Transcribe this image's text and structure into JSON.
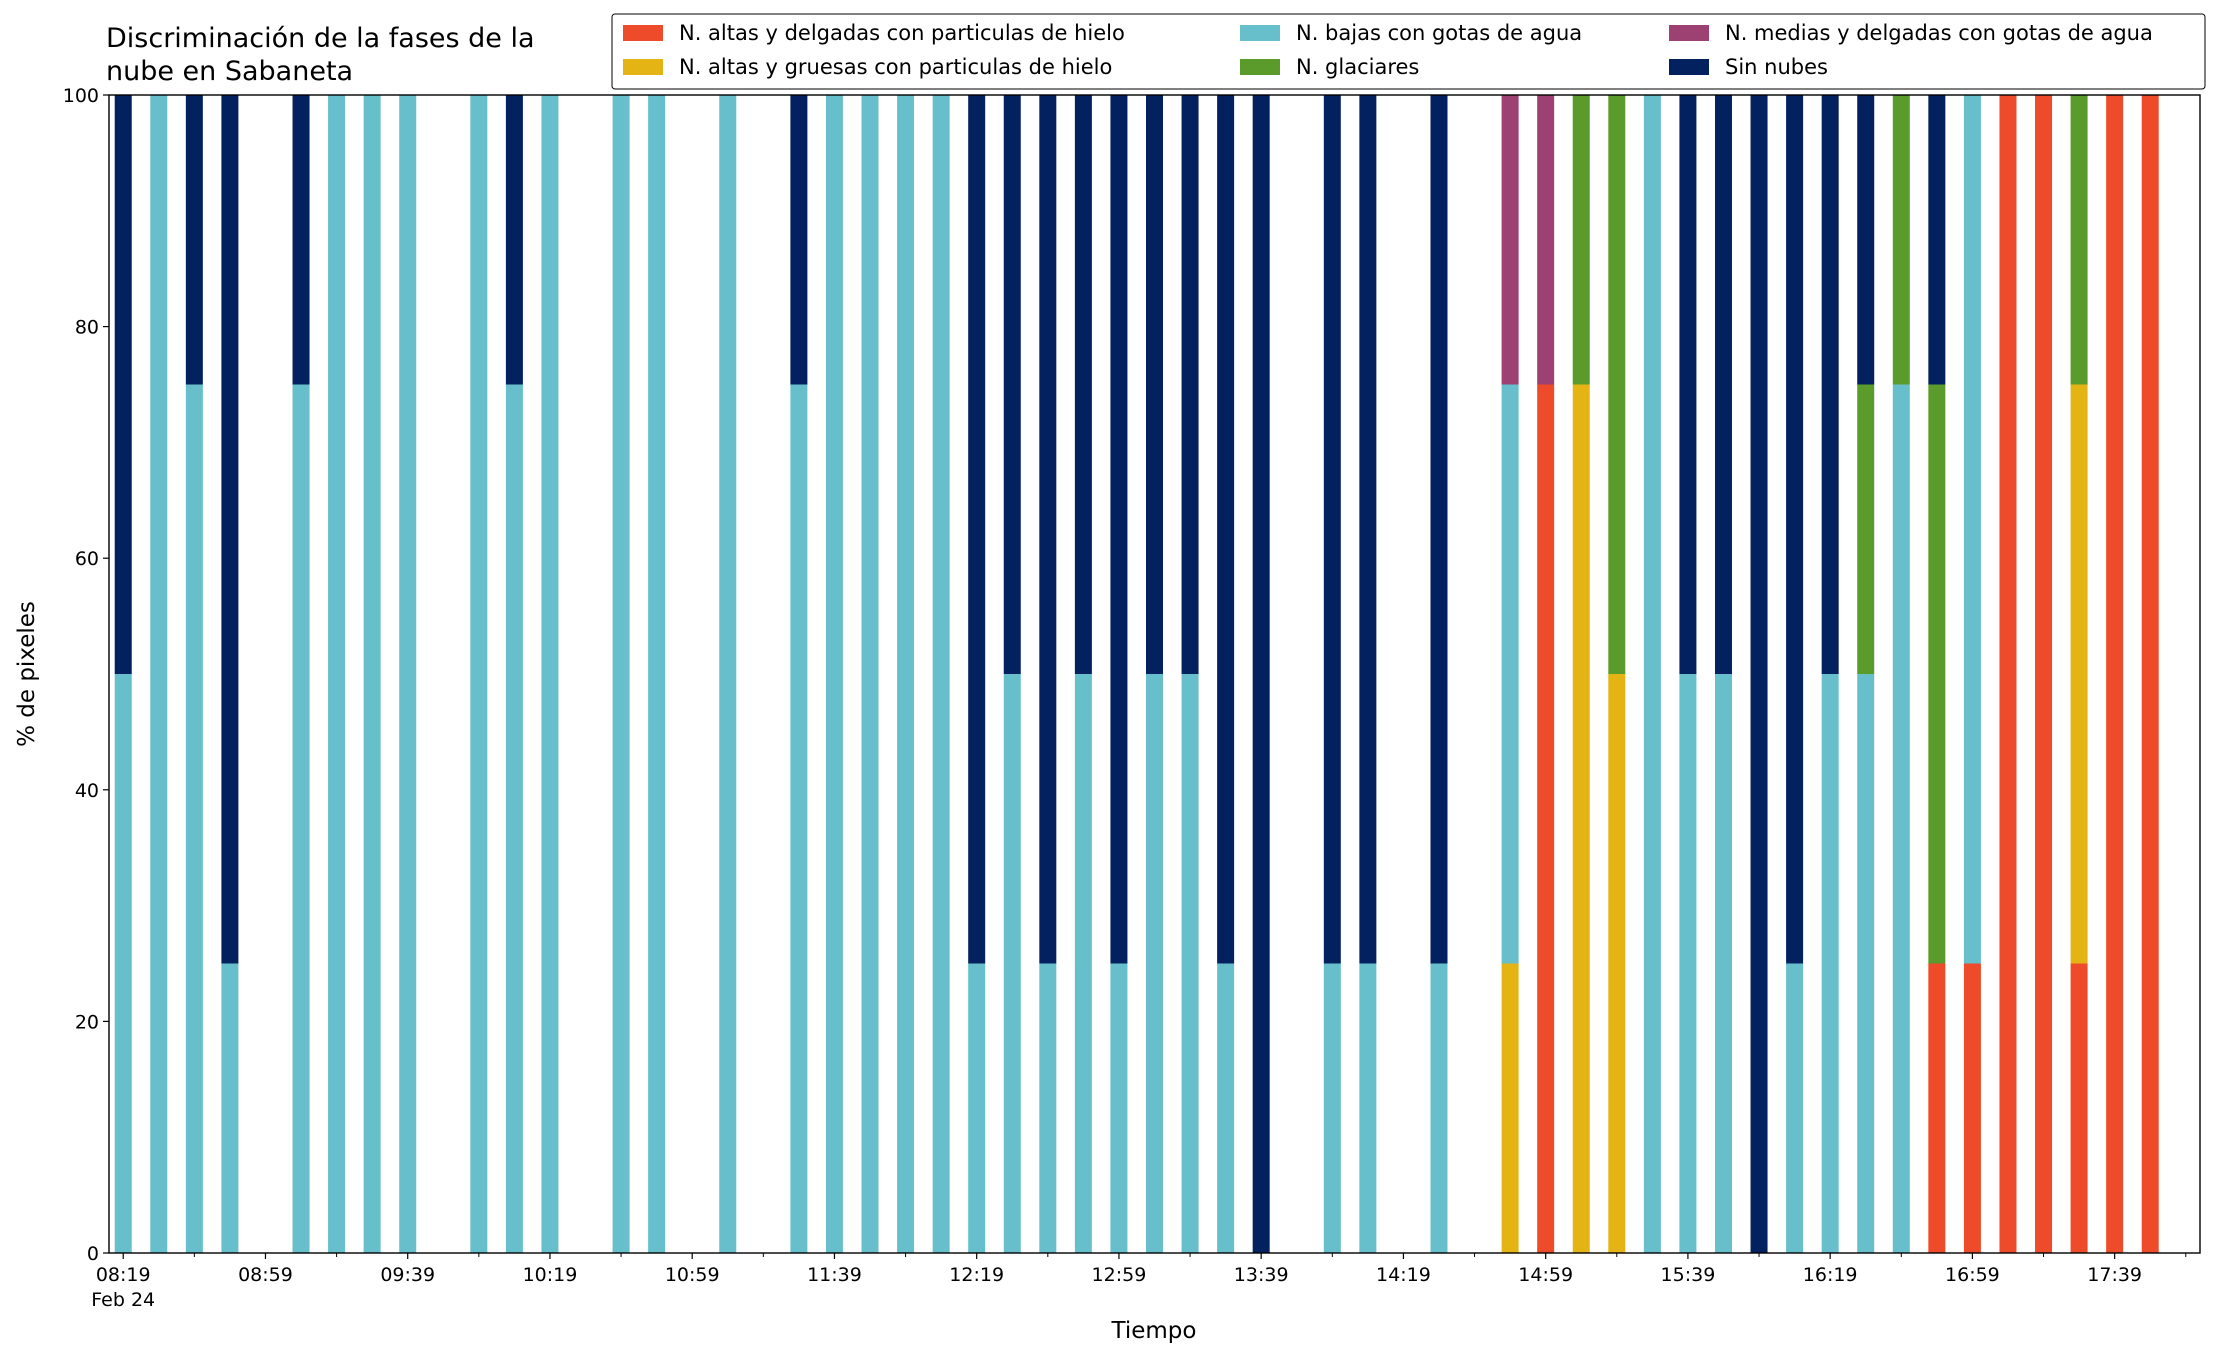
{
  "chart_data": {
    "type": "stacked_bar",
    "title": "Discriminación de la fases de la nube en Sabaneta",
    "xlabel": "Tiempo",
    "ylabel": "% de pixeles",
    "date_label": "Feb 24",
    "x": [
      "08:19",
      "08:29",
      "08:39",
      "08:49",
      "09:09",
      "09:19",
      "09:29",
      "09:39",
      "09:59",
      "10:09",
      "10:19",
      "10:39",
      "10:49",
      "11:09",
      "11:29",
      "11:39",
      "11:49",
      "11:59",
      "12:09",
      "12:19",
      "12:29",
      "12:39",
      "12:49",
      "12:59",
      "13:09",
      "13:19",
      "13:29",
      "13:39",
      "13:59",
      "14:09",
      "14:29",
      "14:49",
      "14:59",
      "15:09",
      "15:19",
      "15:29",
      "15:39",
      "15:49",
      "15:59",
      "16:09",
      "16:19",
      "16:29",
      "16:39",
      "16:49",
      "16:59",
      "17:09",
      "17:19",
      "17:29",
      "17:39",
      "17:49"
    ],
    "series": [
      {
        "name": "N. altas y delgadas con particulas de hielo",
        "color": "#ee4b2b",
        "values": [
          0,
          0,
          0,
          0,
          0,
          0,
          0,
          0,
          0,
          0,
          0,
          0,
          0,
          0,
          0,
          0,
          0,
          0,
          0,
          0,
          0,
          0,
          0,
          0,
          0,
          0,
          0,
          0,
          0,
          0,
          0,
          0,
          75,
          0,
          0,
          0,
          0,
          0,
          0,
          0,
          0,
          0,
          0,
          25,
          25,
          100,
          100,
          25,
          100,
          100
        ]
      },
      {
        "name": "N. altas y gruesas con particulas de hielo",
        "color": "#e3b414",
        "values": [
          0,
          0,
          0,
          0,
          0,
          0,
          0,
          0,
          0,
          0,
          0,
          0,
          0,
          0,
          0,
          0,
          0,
          0,
          0,
          0,
          0,
          0,
          0,
          0,
          0,
          0,
          0,
          0,
          0,
          0,
          0,
          25,
          0,
          75,
          50,
          0,
          0,
          0,
          0,
          0,
          0,
          0,
          0,
          0,
          0,
          0,
          0,
          50,
          0,
          0
        ]
      },
      {
        "name": "N. bajas con gotas de agua",
        "color": "#67bfcb",
        "values": [
          50,
          100,
          75,
          25,
          75,
          100,
          100,
          100,
          100,
          75,
          100,
          100,
          100,
          100,
          75,
          100,
          100,
          100,
          100,
          25,
          50,
          25,
          50,
          25,
          50,
          50,
          25,
          0,
          25,
          25,
          25,
          50,
          0,
          0,
          0,
          100,
          50,
          50,
          0,
          25,
          50,
          50,
          75,
          0,
          75,
          0,
          0,
          0,
          0,
          0
        ]
      },
      {
        "name": "N. glaciares",
        "color": "#5b9b2b",
        "values": [
          0,
          0,
          0,
          0,
          0,
          0,
          0,
          0,
          0,
          0,
          0,
          0,
          0,
          0,
          0,
          0,
          0,
          0,
          0,
          0,
          0,
          0,
          0,
          0,
          0,
          0,
          0,
          0,
          0,
          0,
          0,
          0,
          0,
          25,
          50,
          0,
          0,
          0,
          0,
          0,
          0,
          25,
          25,
          50,
          0,
          0,
          0,
          25,
          0,
          0
        ]
      },
      {
        "name": "N. medias y delgadas con gotas de agua",
        "color": "#9d4173",
        "values": [
          0,
          0,
          0,
          0,
          0,
          0,
          0,
          0,
          0,
          0,
          0,
          0,
          0,
          0,
          0,
          0,
          0,
          0,
          0,
          0,
          0,
          0,
          0,
          0,
          0,
          0,
          0,
          0,
          0,
          0,
          0,
          25,
          25,
          0,
          0,
          0,
          0,
          0,
          0,
          0,
          0,
          0,
          0,
          0,
          0,
          0,
          0,
          0,
          0,
          0
        ]
      },
      {
        "name": "Sin nubes",
        "color": "#03205f",
        "values": [
          50,
          0,
          25,
          75,
          25,
          0,
          0,
          0,
          0,
          25,
          0,
          0,
          0,
          0,
          25,
          0,
          0,
          0,
          0,
          75,
          50,
          75,
          50,
          75,
          50,
          50,
          75,
          100,
          75,
          75,
          75,
          0,
          0,
          0,
          0,
          0,
          50,
          50,
          100,
          75,
          50,
          25,
          0,
          25,
          0,
          0,
          0,
          0,
          0,
          0
        ]
      }
    ],
    "xlim": [
      "08:15",
      "18:03"
    ],
    "xticks": [
      "08:19",
      "08:59",
      "09:39",
      "10:19",
      "10:59",
      "11:39",
      "12:19",
      "12:59",
      "13:39",
      "14:19",
      "14:59",
      "15:39",
      "16:19",
      "16:59",
      "17:39"
    ],
    "xminor": [
      "08:39",
      "09:19",
      "09:59",
      "10:39",
      "11:19",
      "11:59",
      "12:39",
      "13:19",
      "13:59",
      "14:39",
      "15:19",
      "15:59",
      "16:39",
      "17:19",
      "17:59"
    ],
    "ylim": [
      0,
      100
    ],
    "yticks": [
      0,
      20,
      40,
      60,
      80,
      100
    ],
    "legend": "upper right",
    "legend_columns": 3
  }
}
